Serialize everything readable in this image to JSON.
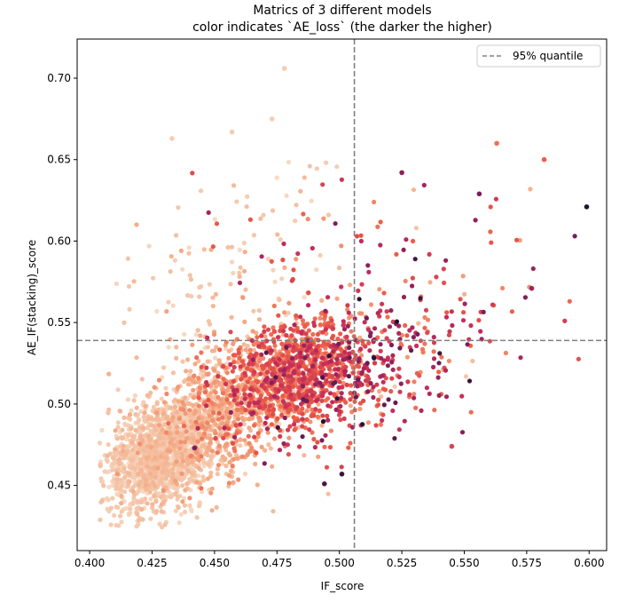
{
  "chart_data": {
    "type": "scatter",
    "title": "Matrics of 3 different models",
    "subtitle": "color indicates `AE_loss` (the darker the higher)",
    "xlabel": "IF_score",
    "ylabel": "AE_IF(stacking)_score",
    "xlim": [
      0.395,
      0.607
    ],
    "ylim": [
      0.41,
      0.724
    ],
    "xticks": [
      "0.400",
      "0.425",
      "0.450",
      "0.475",
      "0.500",
      "0.525",
      "0.550",
      "0.575",
      "0.600"
    ],
    "yticks": [
      "0.45",
      "0.50",
      "0.55",
      "0.60",
      "0.65",
      "0.70"
    ],
    "grid": false,
    "legend_position": "top-right",
    "colormap": [
      "#f6d9c3",
      "#f3a882",
      "#ed5d47",
      "#c42c5a",
      "#7a1d5c",
      "#1e1430"
    ],
    "color_variable": "AE_loss",
    "reference_lines": [
      {
        "orientation": "vertical",
        "value": 0.506,
        "style": "dashed",
        "color": "#808080",
        "legend": "95% quantile"
      },
      {
        "orientation": "horizontal",
        "value": 0.539,
        "style": "dashed",
        "color": "#808080"
      }
    ],
    "highlighted_points": [
      {
        "x": 0.599,
        "y": 0.621,
        "level": 1.0
      },
      {
        "x": 0.478,
        "y": 0.706,
        "level": 0.05
      },
      {
        "x": 0.582,
        "y": 0.65,
        "level": 0.4
      },
      {
        "x": 0.563,
        "y": 0.66,
        "level": 0.35
      },
      {
        "x": 0.525,
        "y": 0.642,
        "level": 0.75
      },
      {
        "x": 0.577,
        "y": 0.571,
        "level": 0.7
      },
      {
        "x": 0.556,
        "y": 0.629,
        "level": 0.8
      },
      {
        "x": 0.433,
        "y": 0.663,
        "level": 0.05
      },
      {
        "x": 0.457,
        "y": 0.667,
        "level": 0.05
      },
      {
        "x": 0.473,
        "y": 0.675,
        "level": 0.05
      },
      {
        "x": 0.545,
        "y": 0.474,
        "level": 0.5
      },
      {
        "x": 0.501,
        "y": 0.457,
        "level": 0.95
      },
      {
        "x": 0.494,
        "y": 0.451,
        "level": 0.9
      },
      {
        "x": 0.442,
        "y": 0.473,
        "level": 0.8
      }
    ],
    "clusters": [
      {
        "cx": 0.428,
        "cy": 0.47,
        "sx": 0.011,
        "sy": 0.017,
        "corr": 0.35,
        "n": 1500,
        "level": 0.06,
        "level_sd": 0.05
      },
      {
        "cx": 0.452,
        "cy": 0.495,
        "sx": 0.013,
        "sy": 0.022,
        "corr": 0.3,
        "n": 750,
        "level": 0.16,
        "level_sd": 0.08
      },
      {
        "cx": 0.482,
        "cy": 0.518,
        "sx": 0.014,
        "sy": 0.017,
        "corr": 0.25,
        "n": 1000,
        "level": 0.4,
        "level_sd": 0.12
      },
      {
        "cx": 0.508,
        "cy": 0.523,
        "sx": 0.018,
        "sy": 0.022,
        "corr": 0.35,
        "n": 320,
        "level": 0.55,
        "level_sd": 0.2
      },
      {
        "cx": 0.545,
        "cy": 0.545,
        "sx": 0.022,
        "sy": 0.035,
        "corr": 0.3,
        "n": 70,
        "level": 0.5,
        "level_sd": 0.2
      },
      {
        "cx": 0.452,
        "cy": 0.58,
        "sx": 0.025,
        "sy": 0.035,
        "corr": 0.2,
        "n": 110,
        "level": 0.08,
        "level_sd": 0.06
      },
      {
        "cx": 0.5,
        "cy": 0.6,
        "sx": 0.03,
        "sy": 0.025,
        "corr": 0.1,
        "n": 45,
        "level": 0.45,
        "level_sd": 0.2
      }
    ]
  }
}
